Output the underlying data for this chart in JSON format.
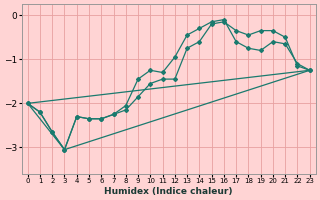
{
  "title": "",
  "xlabel": "Humidex (Indice chaleur)",
  "ylabel": "",
  "bg_color": "#ffd4d4",
  "plot_bg_color": "#ffd4d4",
  "line_color": "#1a7a6e",
  "grid_color": "#e8a0a0",
  "xlim": [
    -0.5,
    23.5
  ],
  "ylim": [
    -3.6,
    0.25
  ],
  "yticks": [
    0,
    -1,
    -2,
    -3
  ],
  "xticks": [
    0,
    1,
    2,
    3,
    4,
    5,
    6,
    7,
    8,
    9,
    10,
    11,
    12,
    13,
    14,
    15,
    16,
    17,
    18,
    19,
    20,
    21,
    22,
    23
  ],
  "line1_x": [
    0,
    1,
    2,
    3,
    4,
    5,
    6,
    7,
    8,
    9,
    10,
    11,
    12,
    13,
    14,
    15,
    16,
    17,
    18,
    19,
    20,
    21,
    22,
    23
  ],
  "line1_y": [
    -2.0,
    -2.2,
    -2.65,
    -3.05,
    -2.3,
    -2.35,
    -2.35,
    -2.25,
    -2.15,
    -1.85,
    -1.55,
    -1.45,
    -1.45,
    -0.75,
    -0.6,
    -0.2,
    -0.15,
    -0.35,
    -0.45,
    -0.35,
    -0.35,
    -0.5,
    -1.15,
    -1.25
  ],
  "line2_x": [
    0,
    1,
    2,
    3,
    4,
    5,
    6,
    7,
    8,
    9,
    10,
    11,
    12,
    13,
    14,
    15,
    16,
    17,
    18,
    19,
    20,
    21,
    22,
    23
  ],
  "line2_y": [
    -2.0,
    -2.2,
    -2.65,
    -3.05,
    -2.3,
    -2.35,
    -2.35,
    -2.25,
    -2.05,
    -1.45,
    -1.25,
    -1.3,
    -0.95,
    -0.45,
    -0.3,
    -0.15,
    -0.1,
    -0.6,
    -0.75,
    -0.8,
    -0.6,
    -0.65,
    -1.1,
    -1.25
  ],
  "line3_x": [
    0,
    23
  ],
  "line3_y": [
    -2.0,
    -1.25
  ],
  "line4_x": [
    0,
    3,
    23
  ],
  "line4_y": [
    -2.0,
    -3.05,
    -1.25
  ]
}
